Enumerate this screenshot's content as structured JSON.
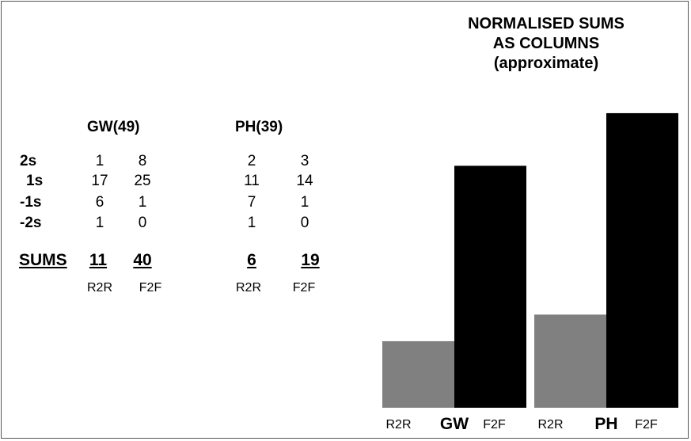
{
  "table": {
    "groups": [
      {
        "title": "GW(49)",
        "col_labels": [
          "R2R",
          "F2F"
        ],
        "rows": [
          [
            "1",
            "8"
          ],
          [
            "17",
            "25"
          ],
          [
            "6",
            "1"
          ],
          [
            "1",
            "0"
          ]
        ],
        "sums": [
          "11",
          "40"
        ]
      },
      {
        "title": "PH(39)",
        "col_labels": [
          "R2R",
          "F2F"
        ],
        "rows": [
          [
            "2",
            "3"
          ],
          [
            "11",
            "14"
          ],
          [
            "7",
            "1"
          ],
          [
            "1",
            "0"
          ]
        ],
        "sums": [
          "6",
          "19"
        ]
      }
    ],
    "row_labels": [
      "2s",
      "1s",
      "-1s",
      "-2s"
    ],
    "sums_label": "SUMS"
  },
  "chart_data": {
    "type": "bar",
    "title": "NORMALISED SUMS AS COLUMNS (approximate)",
    "title_lines": [
      "NORMALISED SUMS",
      "AS COLUMNS",
      "(approximate)"
    ],
    "categories": [
      "GW",
      "PH"
    ],
    "series": [
      {
        "name": "R2R",
        "values": [
          11,
          15.4
        ],
        "color": "#808080"
      },
      {
        "name": "F2F",
        "values": [
          40,
          48.7
        ],
        "color": "#000000"
      }
    ],
    "ylim": [
      0,
      50
    ],
    "grid": false,
    "axes_visible": false
  }
}
